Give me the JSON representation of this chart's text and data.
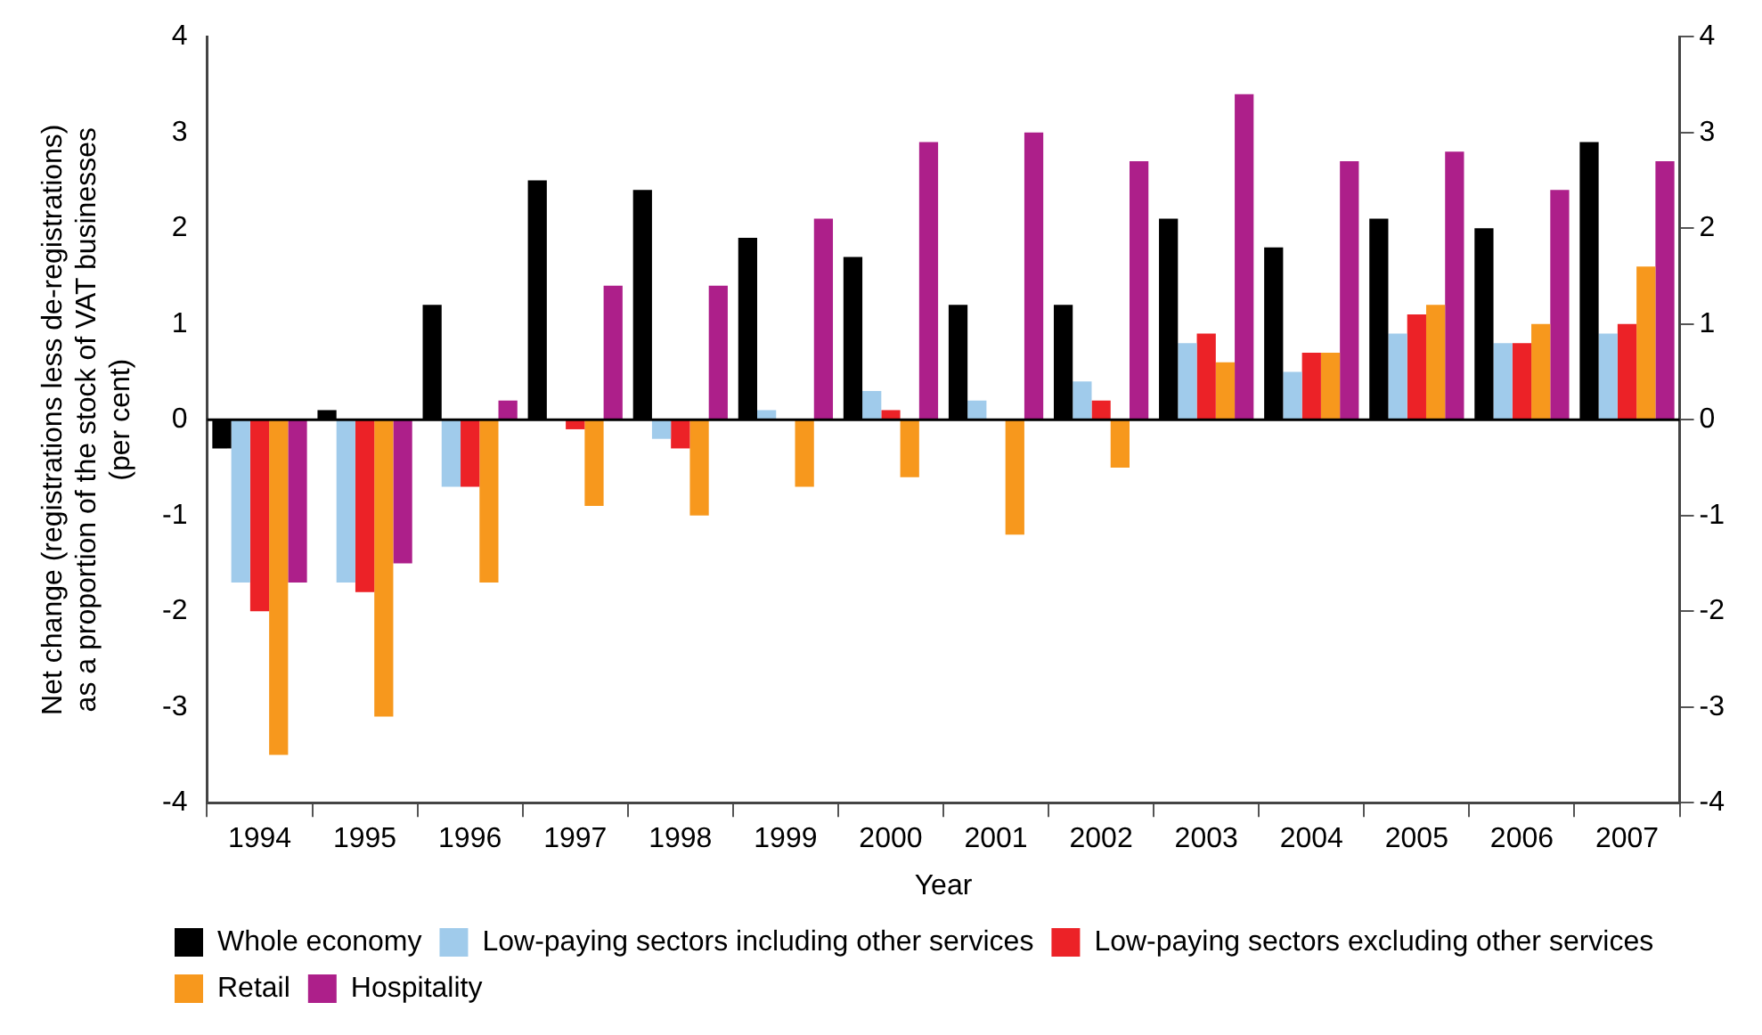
{
  "chart_data": {
    "type": "bar",
    "xlabel": "Year",
    "ylabel": "Net change (registrations less de-registrations) as a proportion of the stock of VAT businesses (per cent)",
    "categories": [
      "1994",
      "1995",
      "1996",
      "1997",
      "1998",
      "1999",
      "2000",
      "2001",
      "2002",
      "2003",
      "2004",
      "2005",
      "2006",
      "2007"
    ],
    "series": [
      {
        "name": "Whole economy",
        "color": "#000000",
        "values": [
          -0.3,
          0.1,
          1.2,
          2.5,
          2.4,
          1.9,
          1.7,
          1.2,
          1.2,
          2.1,
          1.8,
          2.1,
          2.0,
          2.9
        ]
      },
      {
        "name": "Low-paying sectors including other services",
        "color": "#a0cbeb",
        "values": [
          -1.7,
          -1.7,
          -0.7,
          0,
          -0.2,
          0.1,
          0.3,
          0.2,
          0.4,
          0.8,
          0.5,
          0.9,
          0.8,
          0.9
        ]
      },
      {
        "name": "Low-paying sectors excluding other services",
        "color": "#ec2227",
        "values": [
          -2.0,
          -1.8,
          -0.7,
          -0.1,
          -0.3,
          0,
          0.1,
          0,
          0.2,
          0.9,
          0.7,
          1.1,
          0.8,
          1.0
        ]
      },
      {
        "name": "Retail",
        "color": "#f7981d",
        "values": [
          -3.5,
          -3.1,
          -1.7,
          -0.9,
          -1.0,
          -0.7,
          -0.6,
          -1.2,
          -0.5,
          0.6,
          0.7,
          1.2,
          1.0,
          1.6
        ]
      },
      {
        "name": "Hospitality",
        "color": "#ad1f8a",
        "values": [
          -1.7,
          -1.5,
          0.2,
          1.4,
          1.4,
          2.1,
          2.9,
          3.0,
          2.7,
          3.4,
          2.7,
          2.8,
          2.4,
          2.7
        ]
      }
    ],
    "ylim": [
      -4,
      4
    ],
    "yticks": [
      -4,
      -3,
      -2,
      -1,
      0,
      1,
      2,
      3,
      4
    ],
    "y2lim": [
      -4,
      4
    ],
    "y2ticks": [
      -4,
      -3,
      -2,
      -1,
      0,
      1,
      2,
      3,
      4
    ],
    "ref_lines": [
      {
        "axis": "y",
        "value": 0,
        "color": "#000000"
      }
    ],
    "grid": false,
    "legend": "bottom"
  }
}
